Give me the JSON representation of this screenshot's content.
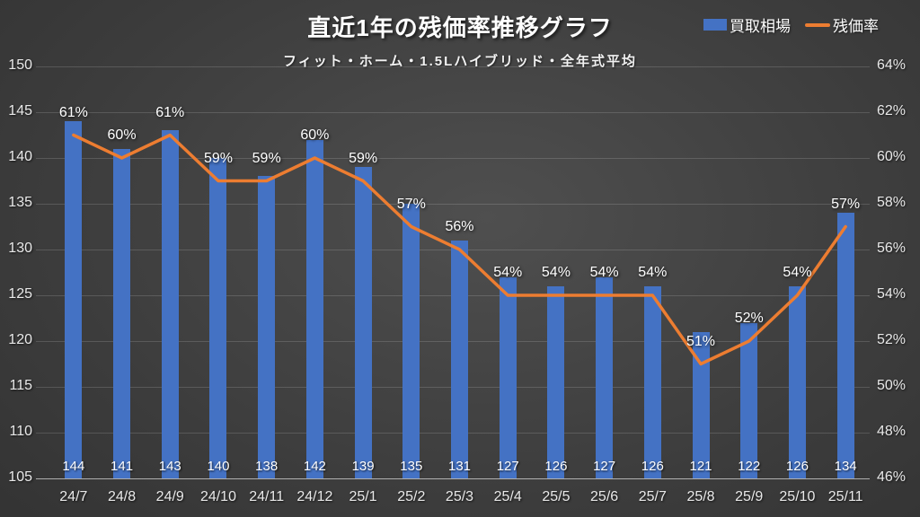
{
  "title": "直近1年の残価率推移グラフ",
  "subtitle": "フィット・ホーム・1.5Lハイブリッド・全年式平均",
  "legend": {
    "bar_label": "買取相場",
    "line_label": "残価率"
  },
  "colors": {
    "bar": "#4472C4",
    "line": "#ED7D31",
    "text": "#FFFFFF",
    "axis_text": "#E9E9E9"
  },
  "chart_data": {
    "type": "bar",
    "subtype": "combo-bar-line-dual-axis",
    "title": "直近1年の残価率推移グラフ",
    "subtitle": "フィット・ホーム・1.5Lハイブリッド・全年式平均",
    "grid": true,
    "legend_position": "top-right",
    "categories": [
      "24/7",
      "24/8",
      "24/9",
      "24/10",
      "24/11",
      "24/12",
      "25/1",
      "25/2",
      "25/3",
      "25/4",
      "25/5",
      "25/6",
      "25/7",
      "25/8",
      "25/9",
      "25/10",
      "25/11"
    ],
    "series": [
      {
        "name": "買取相場",
        "type": "bar",
        "axis": "left",
        "color": "#4472C4",
        "values": [
          144,
          141,
          143,
          140,
          138,
          142,
          139,
          135,
          131,
          127,
          126,
          127,
          126,
          121,
          122,
          126,
          134
        ]
      },
      {
        "name": "残価率",
        "type": "line",
        "axis": "right",
        "color": "#ED7D31",
        "values_percent": [
          61,
          60,
          61,
          59,
          59,
          60,
          59,
          57,
          56,
          54,
          54,
          54,
          54,
          51,
          52,
          54,
          57
        ],
        "point_labels": [
          "61%",
          "60%",
          "61%",
          "59%",
          "59%",
          "60%",
          "59%",
          "57%",
          "56%",
          "54%",
          "54%",
          "54%",
          "54%",
          "51%",
          "52%",
          "54%",
          "57%"
        ]
      }
    ],
    "left_axis": {
      "min": 105,
      "max": 150,
      "step": 5,
      "tick_labels": [
        "150",
        "145",
        "140",
        "135",
        "130",
        "125",
        "120",
        "115",
        "110",
        "105"
      ]
    },
    "right_axis": {
      "min": 46,
      "max": 64,
      "step": 2,
      "tick_labels": [
        "64%",
        "62%",
        "60%",
        "58%",
        "56%",
        "54%",
        "52%",
        "50%",
        "48%",
        "46%"
      ]
    }
  }
}
